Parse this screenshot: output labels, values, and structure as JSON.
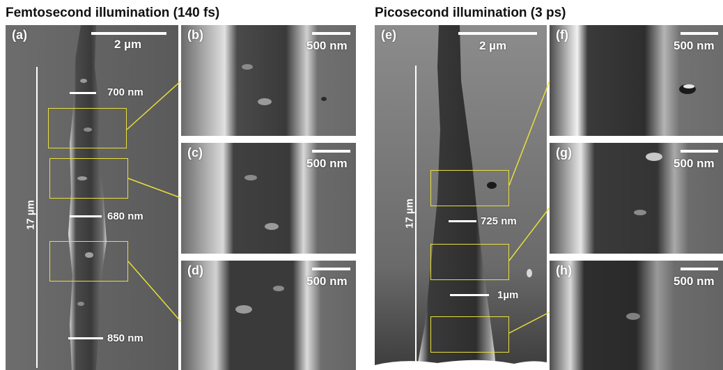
{
  "figure": {
    "left_heading": "Femtosecond illumination (140 fs)",
    "right_heading": "Picosecond illumination (3 ps)",
    "panels": {
      "a": {
        "label": "(a)",
        "scale": "2 µm",
        "length": "17 µm",
        "widths": [
          "700 nm",
          "680 nm",
          "850 nm"
        ]
      },
      "b": {
        "label": "(b)",
        "scale": "500 nm"
      },
      "c": {
        "label": "(c)",
        "scale": "500 nm"
      },
      "d": {
        "label": "(d)",
        "scale": "500 nm"
      },
      "e": {
        "label": "(e)",
        "scale": "2 µm",
        "length": "17 µm",
        "widths": [
          "725 nm",
          "1µm"
        ]
      },
      "f": {
        "label": "(f)",
        "scale": "500 nm"
      },
      "g": {
        "label": "(g)",
        "scale": "500 nm"
      },
      "h": {
        "label": "(h)",
        "scale": "500 nm"
      }
    },
    "colors": {
      "inset_box": "#e8e03a",
      "annotation": "#ffffff"
    }
  }
}
